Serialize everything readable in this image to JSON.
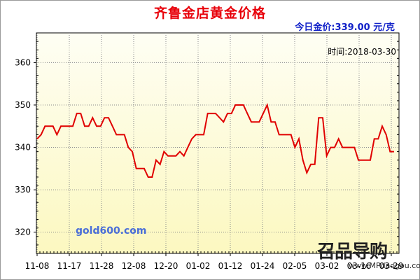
{
  "header": {
    "title": "齐鲁金店黄金价格",
    "today_label": "今日金价:",
    "today_price": "339.00",
    "today_unit": "元/克"
  },
  "time_label": "时间:2018-03-30",
  "watermark": "gold600.com",
  "logo": {
    "brand_text": "召品导购",
    "site_text": "www.MPdaogou.com"
  },
  "colors": {
    "line": "#e00000",
    "title": "#e8000a",
    "today": "#1020c8",
    "bg_top": "#fefef4",
    "bg_bottom": "#fcf8c0"
  },
  "chart_data": {
    "type": "line",
    "title": "齐鲁金店黄金价格",
    "xlabel": "",
    "ylabel": "",
    "ylim": [
      315,
      367
    ],
    "yticks": [
      320,
      330,
      340,
      350,
      360
    ],
    "xticks": [
      "11-08",
      "11-17",
      "11-28",
      "12-08",
      "12-20",
      "01-02",
      "01-12",
      "01-24",
      "02-05",
      "03-02",
      "03-16",
      "03-29"
    ],
    "grid": true,
    "series": [
      {
        "values": [
          342,
          343,
          345,
          345,
          345,
          343,
          345,
          345,
          345,
          345,
          348,
          348,
          345,
          345,
          347,
          345,
          345,
          347,
          347,
          345,
          343,
          343,
          343,
          340,
          339,
          335,
          335,
          335,
          333,
          333,
          337,
          336,
          339,
          338,
          338,
          338,
          339,
          338,
          340,
          342,
          343,
          343,
          343,
          348,
          348,
          348,
          347,
          346,
          348,
          348,
          350,
          350,
          350,
          348,
          346,
          346,
          346,
          348,
          350,
          346,
          346,
          343,
          343,
          343,
          343,
          340,
          342,
          337,
          334,
          336,
          336,
          347,
          347,
          338,
          340,
          340,
          342,
          340,
          340,
          340,
          340,
          337,
          337,
          337,
          337,
          342,
          342,
          345,
          343,
          339,
          339
        ]
      }
    ]
  }
}
